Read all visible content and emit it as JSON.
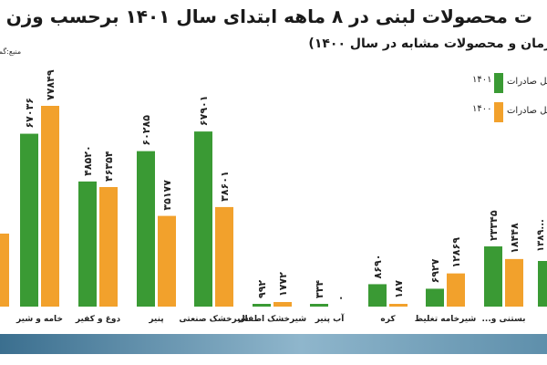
{
  "header": {
    "title": "ت محصولات لبنی در ۸ ماهه ابتدای سال ۱۴۰۱ برحسب وزن",
    "subtitle": "ت زمان و محصولات مشابه در سال ۱۴۰۰)",
    "source": "منبع:گم"
  },
  "legend": [
    {
      "year": "۱۴۰۱",
      "label": "کل صادرات",
      "color": "#3a9a34"
    },
    {
      "year": "۱۴۰۰",
      "label": "کل صادرات",
      "color": "#f2a12c"
    }
  ],
  "colors": {
    "s1401": "#3a9a34",
    "s1400": "#f2a12c",
    "footer": "#4f87a8"
  },
  "chart_data": {
    "type": "bar",
    "title": "ت محصولات لبنی در ۸ ماهه ابتدای سال ۱۴۰۱ برحسب وزن",
    "categories": [
      "خامه و شیر",
      "دوغ و کفیر",
      "پنیر",
      "شیرخشک صنعتی",
      "شیرخشک اطفال",
      "آب پنیر",
      "کره",
      "شیرخامه تغلیظ",
      "بستنی و..."
    ],
    "series": [
      {
        "name": "۱۴۰۱",
        "values": [
          67036,
          48520,
          60285,
          67901,
          992,
          334,
          8690,
          6927,
          23345
        ],
        "labels": [
          "۶۷۰۳۶",
          "۴۸۵۲۰",
          "۶۰۲۸۵",
          "۶۷۹۰۱",
          "۹۹۲",
          "۳۳۴",
          "۸۶۹۰",
          "۶۹۲۷",
          "۲۳۳۴۵"
        ]
      },
      {
        "name": "۱۴۰۰",
        "values": [
          77849,
          46354,
          35177,
          38601,
          1772,
          0,
          187,
          12869,
          18448
        ],
        "labels": [
          "۷۷۸۴۹",
          "۴۶۳۵۴",
          "۳۵۱۷۷",
          "۳۸۶۰۱",
          "۱۷۷۲",
          "۰",
          "۱۸۷",
          "۱۲۸۶۹",
          "۱۸۴۴۸"
        ]
      }
    ],
    "partial_edge_values": {
      "left_1400_bar": "",
      "right_1401": "۱۳۸۹..."
    },
    "legend_position": "top-right",
    "grid": false
  }
}
